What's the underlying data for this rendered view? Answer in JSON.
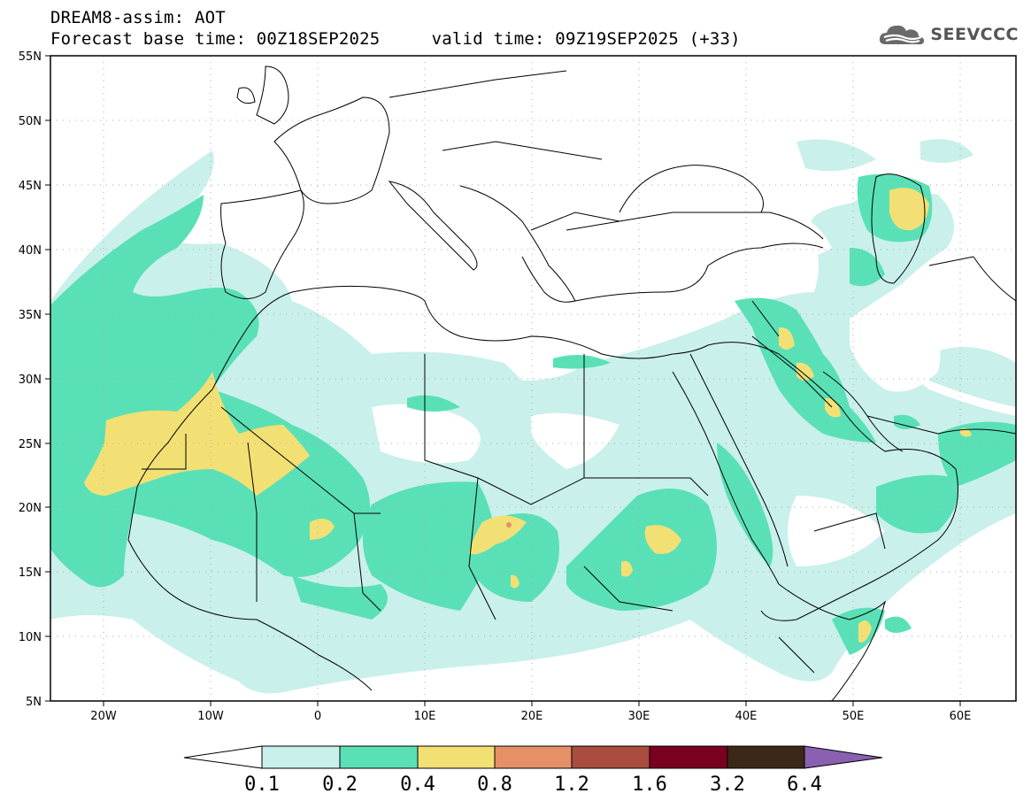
{
  "header": {
    "line1": "DREAM8-assim: AOT",
    "line2": "Forecast base time: 00Z18SEP2025     valid time: 09Z19SEP2025 (+33)"
  },
  "logo": {
    "text": "SEEVCCC",
    "icon": "cloud-icon"
  },
  "map": {
    "region": "North Africa, Middle East, Europe",
    "lon_range": [
      -25,
      65
    ],
    "lat_range": [
      5,
      55
    ],
    "lat_labels": [
      "55N",
      "50N",
      "45N",
      "40N",
      "35N",
      "30N",
      "25N",
      "20N",
      "15N",
      "10N",
      "5N"
    ],
    "lon_labels": [
      "20W",
      "10W",
      "0",
      "10E",
      "20E",
      "30E",
      "40E",
      "50E",
      "60E"
    ],
    "gridlines": true
  },
  "colorbar": {
    "labels": [
      "0.1",
      "0.2",
      "0.4",
      "0.8",
      "1.2",
      "1.6",
      "3.2",
      "6.4"
    ],
    "colors": [
      "#ffffff",
      "#c9f0eb",
      "#5ae0b6",
      "#f2e075",
      "#e69068",
      "#a84d40",
      "#7a0020",
      "#3d2818",
      "#8a60b0"
    ]
  }
}
